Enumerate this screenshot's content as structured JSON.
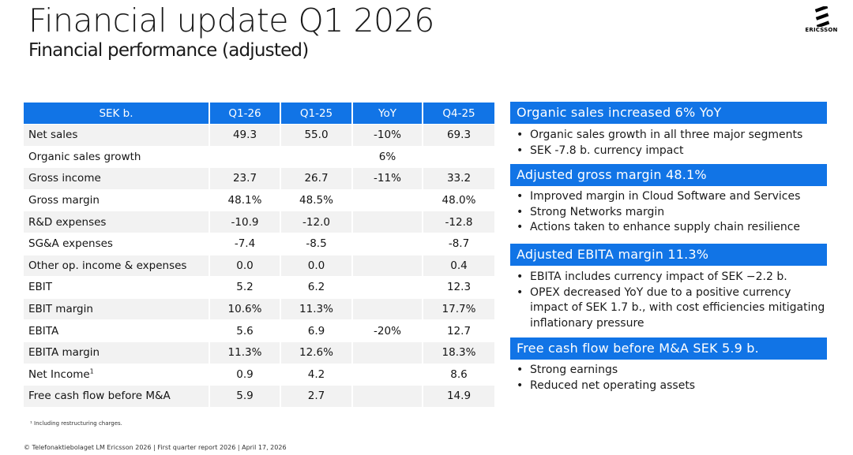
{
  "title": "Financial update Q1 2026",
  "subtitle": "Financial performance (adjusted)",
  "logo": {
    "text": "ERICSSON",
    "icon": "ericsson-logo-icon"
  },
  "table": {
    "headers": [
      "SEK b.",
      "Q1-26",
      "Q1-25",
      "YoY",
      "Q4-25"
    ],
    "rows": [
      {
        "label": "Net sales",
        "q1_26": "49.3",
        "q1_25": "55.0",
        "yoy": "-10%",
        "q4_25": "69.3"
      },
      {
        "label": "Organic sales growth",
        "q1_26": "",
        "q1_25": "",
        "yoy": "6%",
        "q4_25": ""
      },
      {
        "label": "Gross income",
        "q1_26": "23.7",
        "q1_25": "26.7",
        "yoy": "-11%",
        "q4_25": "33.2"
      },
      {
        "label": "Gross margin",
        "q1_26": "48.1%",
        "q1_25": "48.5%",
        "yoy": "",
        "q4_25": "48.0%"
      },
      {
        "label": "R&D expenses",
        "q1_26": "-10.9",
        "q1_25": "-12.0",
        "yoy": "",
        "q4_25": "-12.8"
      },
      {
        "label": "SG&A expenses",
        "q1_26": "-7.4",
        "q1_25": "-8.5",
        "yoy": "",
        "q4_25": "-8.7"
      },
      {
        "label": "Other op. income & expenses",
        "q1_26": "0.0",
        "q1_25": "0.0",
        "yoy": "",
        "q4_25": "0.4"
      },
      {
        "label": "EBIT",
        "q1_26": "5.2",
        "q1_25": "6.2",
        "yoy": "",
        "q4_25": "12.3"
      },
      {
        "label": "EBIT margin",
        "q1_26": "10.6%",
        "q1_25": "11.3%",
        "yoy": "",
        "q4_25": "17.7%"
      },
      {
        "label": "EBITA",
        "q1_26": "5.6",
        "q1_25": "6.9",
        "yoy": "-20%",
        "q4_25": "12.7"
      },
      {
        "label": "EBITA margin",
        "q1_26": "11.3%",
        "q1_25": "12.6%",
        "yoy": "",
        "q4_25": "18.3%"
      },
      {
        "label": "Net Income",
        "label_sup": "1",
        "q1_26": "0.9",
        "q1_25": "4.2",
        "yoy": "",
        "q4_25": "8.6"
      },
      {
        "label": "Free cash flow before M&A",
        "q1_26": "5.9",
        "q1_25": "2.7",
        "yoy": "",
        "q4_25": "14.9"
      }
    ]
  },
  "footnote": "¹ Including restructuring charges.",
  "footer": "© Telefonaktiebolaget LM Ericsson 2026 | First quarter report 2026 | April 17, 2026",
  "highlights": [
    {
      "header": "Organic sales increased 6% YoY",
      "bullets": [
        "Organic sales growth in all three major segments",
        "SEK -7.8 b. currency impact"
      ]
    },
    {
      "header": "Adjusted gross margin 48.1%",
      "bullets": [
        "Improved margin in Cloud Software and Services",
        "Strong Networks margin",
        "Actions taken to enhance supply chain resilience"
      ]
    },
    {
      "header": "Adjusted EBITA margin 11.3%",
      "bullets": [
        "EBITA includes currency impact of SEK −2.2 b.",
        "OPEX decreased YoY due to a positive currency impact of SEK 1.7 b., with cost efficiencies mitigating inflationary pressure"
      ]
    },
    {
      "header": "Free cash flow before M&A SEK 5.9 b.",
      "bullets": [
        "Strong earnings",
        "Reduced net operating assets"
      ]
    }
  ],
  "colors": {
    "accent": "#1174e6",
    "row_alt": "#f2f2f2"
  }
}
